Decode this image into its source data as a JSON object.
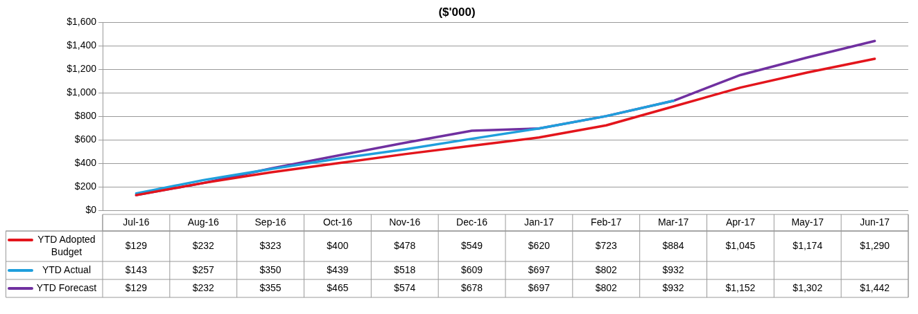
{
  "chart_data": {
    "type": "line",
    "title": "($'000)",
    "categories": [
      "Jul-16",
      "Aug-16",
      "Sep-16",
      "Oct-16",
      "Nov-16",
      "Dec-16",
      "Jan-17",
      "Feb-17",
      "Mar-17",
      "Apr-17",
      "May-17",
      "Jun-17"
    ],
    "series": [
      {
        "name": "YTD Adopted Budget",
        "color": "#e3151c",
        "values": [
          129,
          232,
          323,
          400,
          478,
          549,
          620,
          723,
          884,
          1045,
          1174,
          1290
        ],
        "value_labels": [
          "$129",
          "$232",
          "$323",
          "$400",
          "$478",
          "$549",
          "$620",
          "$723",
          "$884",
          "$1,045",
          "$1,174",
          "$1,290"
        ]
      },
      {
        "name": "YTD Actual",
        "color": "#1f9fdc",
        "values": [
          143,
          257,
          350,
          439,
          518,
          609,
          697,
          802,
          932,
          null,
          null,
          null
        ],
        "value_labels": [
          "$143",
          "$257",
          "$350",
          "$439",
          "$518",
          "$609",
          "$697",
          "$802",
          "$932",
          null,
          null,
          null
        ]
      },
      {
        "name": "YTD Forecast",
        "color": "#7030a0",
        "values": [
          129,
          232,
          355,
          465,
          574,
          678,
          697,
          802,
          932,
          1152,
          1302,
          1442
        ],
        "value_labels": [
          "$129",
          "$232",
          "$355",
          "$465",
          "$574",
          "$678",
          "$697",
          "$802",
          "$932",
          "$1,152",
          "$1,302",
          "$1,442"
        ]
      }
    ],
    "ylim": [
      0,
      1600
    ],
    "yticks": [
      {
        "value": 0,
        "label": "$0"
      },
      {
        "value": 200,
        "label": "$200"
      },
      {
        "value": 400,
        "label": "$400"
      },
      {
        "value": 600,
        "label": "$600"
      },
      {
        "value": 800,
        "label": "$800"
      },
      {
        "value": 1000,
        "label": "$1,000"
      },
      {
        "value": 1200,
        "label": "$1,200"
      },
      {
        "value": 1400,
        "label": "$1,400"
      },
      {
        "value": 1600,
        "label": "$1,600"
      }
    ],
    "grid": "y",
    "legend": "bottom left",
    "marker": "none",
    "line_style": "solid"
  }
}
